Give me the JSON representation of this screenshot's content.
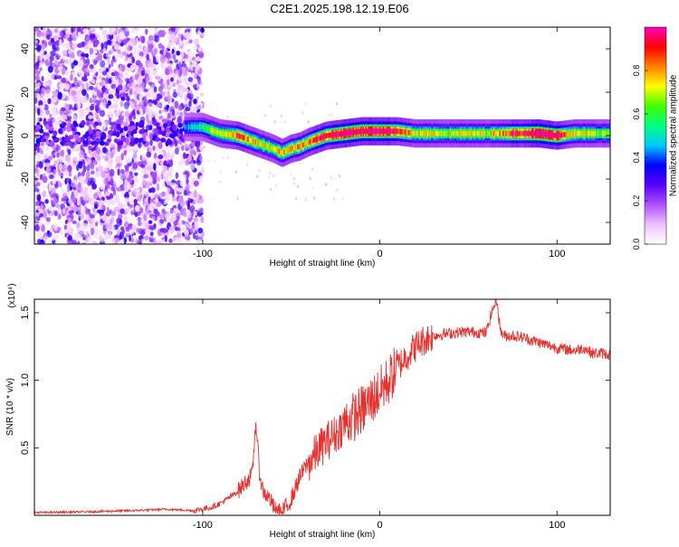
{
  "title": "C2E1.2025.198.12.19.E06",
  "chart_data": [
    {
      "type": "heatmap",
      "title": "C2E1.2025.198.12.19.E06",
      "xlabel": "Height of straight line (km)",
      "ylabel": "Frequency (Hz)",
      "xlim": [
        -195,
        130
      ],
      "ylim": [
        -50,
        50
      ],
      "x_ticks": [
        -100,
        0,
        100
      ],
      "x_tick_labels": [
        "-100",
        "0",
        "100"
      ],
      "y_ticks": [
        -40,
        -20,
        0,
        20,
        40
      ],
      "y_tick_labels": [
        "-40",
        "-20",
        "0",
        "20",
        "40"
      ],
      "colorbar": {
        "label": "Normalized spectral amplitude",
        "range": [
          0,
          1
        ],
        "ticks": [
          0,
          0.2,
          0.4,
          0.6,
          0.8
        ],
        "tick_labels": [
          "0.0",
          "0.2",
          "0.4",
          "0.6",
          "0.8"
        ],
        "colors": [
          "#ffffff",
          "#f0c0ff",
          "#b050ff",
          "#5a00ff",
          "#0000ff",
          "#00c8ff",
          "#00ff80",
          "#40ff00",
          "#ffff00",
          "#ff8000",
          "#ff0000",
          "#ff00c0"
        ]
      },
      "ridge": {
        "x": [
          -110,
          -100,
          -90,
          -80,
          -70,
          -60,
          -55,
          -50,
          -45,
          -40,
          -30,
          -20,
          -10,
          0,
          10,
          20,
          40,
          60,
          80,
          90,
          100,
          110,
          130
        ],
        "y": [
          4,
          4,
          1,
          0,
          -3,
          -6,
          -8,
          -6,
          -5,
          -3,
          0,
          1,
          2,
          2,
          2,
          1,
          1,
          1,
          1,
          1,
          0,
          1,
          1
        ],
        "amplitude": [
          0.3,
          0.45,
          0.6,
          0.75,
          0.65,
          0.6,
          0.7,
          0.65,
          0.7,
          0.75,
          0.85,
          0.95,
          0.9,
          0.95,
          0.85,
          0.6,
          0.6,
          0.6,
          0.85,
          0.95,
          0.95,
          0.6,
          0.55
        ]
      }
    },
    {
      "type": "line",
      "xlabel": "Height of straight line (km)",
      "ylabel": "SNR (10 * v/v)",
      "y_multiplier_label": "(x10⁴)",
      "xlim": [
        -195,
        130
      ],
      "ylim": [
        0,
        16000
      ],
      "x_ticks": [
        -100,
        0,
        100
      ],
      "x_tick_labels": [
        "-100",
        "0",
        "100"
      ],
      "y_ticks": [
        5000,
        10000,
        15000
      ],
      "y_tick_labels": [
        "0.5",
        "1.0",
        "1.5"
      ],
      "color": "#e8312f",
      "series": [
        {
          "x": [
            -195,
            -170,
            -140,
            -120,
            -105,
            -95,
            -90,
            -85,
            -80,
            -75,
            -72,
            -70,
            -68,
            -66,
            -64,
            -62,
            -60,
            -58,
            -55,
            -50,
            -46,
            -42,
            -38,
            -35,
            -30,
            -25,
            -20,
            -15,
            -10,
            -5,
            0,
            5,
            10,
            15,
            20,
            25,
            30,
            40,
            50,
            60,
            63,
            66,
            68,
            70,
            75,
            80,
            85,
            90,
            95,
            100,
            105,
            110,
            115,
            120,
            125,
            130
          ],
          "y": [
            200,
            250,
            350,
            450,
            350,
            600,
            900,
            1300,
            1800,
            2600,
            3000,
            7000,
            3200,
            1800,
            1500,
            1200,
            600,
            300,
            200,
            1200,
            2600,
            3600,
            4200,
            4800,
            5500,
            6000,
            6800,
            7300,
            7800,
            8500,
            9200,
            10000,
            11000,
            11800,
            12500,
            13000,
            13300,
            13500,
            13600,
            13500,
            15000,
            16000,
            13700,
            13300,
            13300,
            13200,
            13000,
            12800,
            12600,
            12400,
            12300,
            12200,
            12400,
            12000,
            12000,
            11900
          ]
        }
      ]
    }
  ]
}
